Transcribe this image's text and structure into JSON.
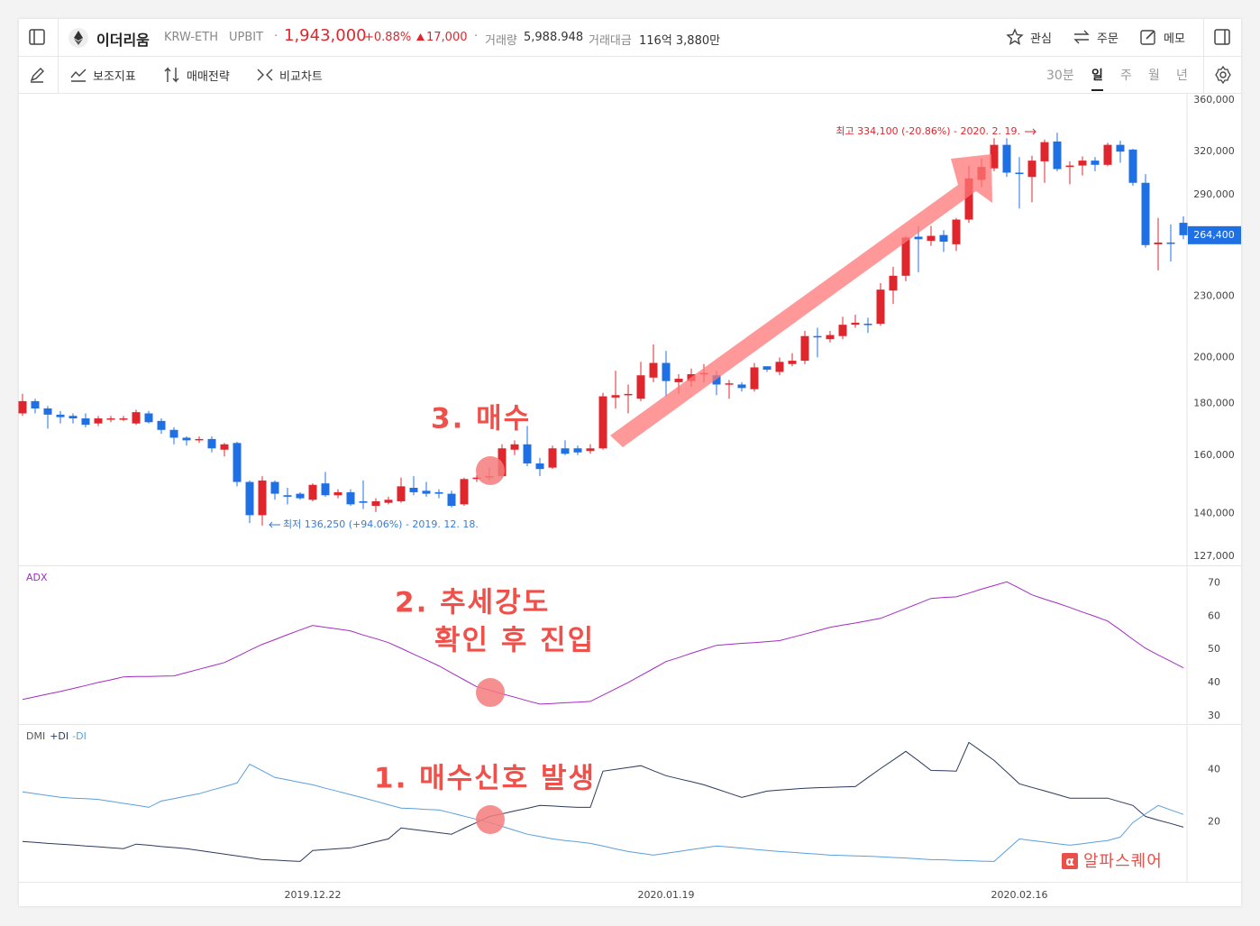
{
  "header": {
    "name": "이더리움",
    "market": "KRW-ETH",
    "exchange": "UPBIT",
    "price": "1,943,000",
    "change_pct": "+0.88%",
    "change": "17,000",
    "volume_label": "거래량",
    "volume": "5,988.948",
    "amount_label": "거래대금",
    "amount": "116억 3,880만",
    "actions": [
      "관심",
      "주문",
      "메모"
    ]
  },
  "toolbar": {
    "items": [
      "보조지표",
      "매매전략",
      "비교차트"
    ],
    "periods": [
      "30분",
      "일",
      "주",
      "월",
      "년"
    ],
    "active_period": 1
  },
  "annotations": [
    "3. 매수",
    "2. 추세강도",
    "확인 후 진입",
    "1.  매수신호 발생"
  ],
  "watermark": {
    "icon": "α",
    "text": "알파스퀘어"
  },
  "chart_data": [
    {
      "type": "candlestick",
      "log_scale": true,
      "up_color": "#e0262d",
      "down_color": "#1f6fe5",
      "categories": [
        null,
        null,
        null,
        null,
        null,
        null,
        null,
        null,
        null,
        null,
        null,
        null,
        null,
        null,
        null,
        null,
        null,
        null,
        null,
        null,
        null,
        null,
        null,
        "2019.12.22",
        null,
        null,
        null,
        null,
        null,
        null,
        null,
        null,
        null,
        null,
        null,
        null,
        null,
        null,
        null,
        null,
        null,
        null,
        null,
        null,
        null,
        null,
        null,
        null,
        null,
        null,
        null,
        "2020.01.19",
        null,
        null,
        null,
        null,
        null,
        null,
        null,
        null,
        null,
        null,
        null,
        null,
        null,
        null,
        null,
        null,
        null,
        null,
        null,
        null,
        null,
        null,
        null,
        null,
        null,
        null,
        null,
        "2020.02.16",
        null,
        null,
        null,
        null,
        null,
        null,
        null,
        null,
        null,
        null,
        null,
        null,
        null
      ],
      "open": [
        176000,
        181000,
        178000,
        175500,
        175000,
        174000,
        172000,
        173500,
        173500,
        172000,
        176000,
        173000,
        169500,
        166500,
        165500,
        166000,
        162000,
        164500,
        150500,
        139500,
        150500,
        146000,
        146500,
        144500,
        150000,
        146000,
        147000,
        144000,
        142500,
        143500,
        144000,
        148500,
        147500,
        147000,
        146500,
        143000,
        151500,
        152000,
        152500,
        162000,
        164000,
        157000,
        155500,
        162500,
        162500,
        161500,
        162500,
        182500,
        183500,
        182000,
        191000,
        197500,
        189000,
        189500,
        192500,
        192000,
        188000,
        188000,
        186000,
        196000,
        193500,
        197000,
        198500,
        210000,
        208500,
        210000,
        215500,
        216000,
        216000,
        233000,
        241000,
        263500,
        261000,
        264500,
        259000,
        274000,
        300000,
        308000,
        325000,
        305000,
        302000,
        313000,
        327500,
        309000,
        310000,
        313500,
        310500,
        325000,
        321500,
        298000,
        259000,
        260000,
        272000
      ],
      "high": [
        184000,
        182000,
        179000,
        177000,
        176000,
        176000,
        175000,
        175000,
        175000,
        177500,
        177000,
        174000,
        170500,
        167000,
        167000,
        167000,
        164500,
        165000,
        151000,
        152500,
        151000,
        148500,
        147000,
        150000,
        154000,
        148000,
        148000,
        151000,
        145000,
        145500,
        152000,
        152500,
        150500,
        148000,
        147500,
        152000,
        153000,
        155500,
        164000,
        165500,
        171000,
        159000,
        163500,
        165500,
        163500,
        164000,
        184500,
        194000,
        188000,
        198000,
        206000,
        203000,
        192500,
        195000,
        197000,
        194000,
        190000,
        189000,
        197500,
        196000,
        200000,
        202000,
        212500,
        214000,
        212500,
        219500,
        220500,
        219000,
        237000,
        246000,
        264000,
        270000,
        270000,
        267500,
        275000,
        310000,
        315000,
        330000,
        330000,
        316000,
        317000,
        329000,
        334100,
        313000,
        316500,
        316000,
        326500,
        328000,
        322000,
        304000,
        275000,
        271000,
        276000
      ],
      "low": [
        175000,
        176000,
        170000,
        172000,
        172000,
        170500,
        171000,
        172500,
        173000,
        171500,
        172000,
        168000,
        164000,
        163500,
        164500,
        161000,
        159500,
        149000,
        137000,
        136250,
        144500,
        143000,
        144500,
        144000,
        145500,
        145000,
        142500,
        141500,
        140500,
        143000,
        143500,
        146000,
        145500,
        145000,
        142000,
        142500,
        150500,
        151000,
        152000,
        160000,
        156000,
        152500,
        155000,
        160000,
        160000,
        160500,
        162000,
        178000,
        176000,
        181000,
        189000,
        183000,
        184000,
        187000,
        189000,
        183500,
        182000,
        185000,
        185000,
        193500,
        192000,
        196000,
        197000,
        200000,
        207000,
        208500,
        214000,
        211500,
        215000,
        226000,
        238000,
        243000,
        258000,
        254500,
        255000,
        272000,
        295000,
        306000,
        302000,
        281000,
        285000,
        298000,
        306000,
        297000,
        303000,
        306000,
        309500,
        312000,
        296000,
        257000,
        244000,
        249000,
        262000
      ],
      "close": [
        181000,
        178000,
        175500,
        174500,
        174000,
        171500,
        174000,
        174000,
        174000,
        176500,
        172500,
        169500,
        166500,
        165500,
        166000,
        162500,
        164000,
        150500,
        139500,
        151000,
        146500,
        145500,
        145000,
        149500,
        146000,
        147000,
        143000,
        143500,
        144000,
        144500,
        149000,
        147000,
        146500,
        146500,
        142500,
        151500,
        152000,
        152500,
        162500,
        164000,
        157000,
        155000,
        162500,
        160500,
        161000,
        162500,
        183000,
        183500,
        184000,
        192000,
        197500,
        189500,
        190500,
        192500,
        193000,
        188000,
        188500,
        186500,
        195500,
        194500,
        198000,
        198500,
        210000,
        209500,
        210500,
        215500,
        216500,
        215500,
        233500,
        241000,
        263000,
        262000,
        264000,
        260500,
        274000,
        301000,
        309000,
        325000,
        305000,
        304000,
        313500,
        327000,
        307500,
        310000,
        313500,
        310500,
        325000,
        320000,
        298000,
        258500,
        260000,
        259500,
        264400
      ],
      "ylim": [
        124400,
        365200
      ],
      "yticks": [
        {
          "value": 360000,
          "label": "360,000"
        },
        {
          "value": 320000,
          "label": "320,000"
        },
        {
          "value": 290000,
          "label": "290,000"
        },
        {
          "value": 230000,
          "label": "230,000"
        },
        {
          "value": 200000,
          "label": "200,000"
        },
        {
          "value": 180000,
          "label": "180,000"
        },
        {
          "value": 160000,
          "label": "160,000"
        },
        {
          "value": 140000,
          "label": "140,000"
        },
        {
          "value": 127000,
          "label": "127,000"
        }
      ],
      "current_price": {
        "value": 264400,
        "label": "264,400"
      },
      "high_label": "최고 334,100 (-20.86%) - 2020. 2. 19.",
      "low_label": "최저 136,250 (+94.06%) - 2019. 12. 18."
    },
    {
      "type": "line",
      "ylim": [
        27.5,
        75
      ],
      "yticks": [
        30,
        40,
        50,
        60,
        70
      ],
      "series": [
        {
          "name": "ADX",
          "color": "#a42bc4",
          "values": [
            34.9,
            35.7,
            36.5,
            37.3,
            38.2,
            39.1,
            40,
            40.8,
            41.7,
            41.8,
            41.8,
            41.9,
            42,
            43,
            44,
            45,
            46,
            47.8,
            49.7,
            51.5,
            52.9,
            54.4,
            55.8,
            57.2,
            56.6,
            56.1,
            55.5,
            54.3,
            53.2,
            52,
            50.3,
            48.5,
            46.8,
            45,
            42.9,
            40.8,
            38.7,
            37.7,
            36.6,
            35.6,
            34.5,
            33.5,
            33.7,
            33.9,
            34.1,
            34.3,
            36.2,
            38.1,
            40,
            42.1,
            44.2,
            46.3,
            47.5,
            48.8,
            50,
            51.2,
            51.5,
            51.8,
            52,
            52.3,
            52.6,
            53.6,
            54.6,
            55.6,
            56.6,
            57.3,
            57.9,
            58.6,
            59.3,
            60.8,
            62.3,
            63.8,
            65.3,
            65.6,
            65.8,
            66.9,
            68.1,
            69.2,
            70.3,
            68.4,
            66.4,
            65.1,
            63.9,
            62.6,
            61.2,
            59.9,
            58.5,
            55.8,
            53,
            50.3,
            48.3,
            46.4,
            44.4
          ]
        }
      ]
    },
    {
      "type": "line",
      "title": "DMI",
      "ylim": [
        -3,
        57
      ],
      "yticks": [
        20,
        40
      ],
      "series": [
        {
          "name": "+DI",
          "color": "#2b3a5c",
          "values": [
            12.4,
            12.1,
            11.7,
            11.4,
            11.1,
            10.7,
            10.4,
            10,
            9.7,
            11.4,
            11,
            10.5,
            10.1,
            9.7,
            9,
            8.3,
            7.6,
            6.9,
            6.2,
            5.5,
            5.3,
            5,
            4.8,
            9,
            9.3,
            9.7,
            10,
            11.1,
            12.3,
            13.4,
            17.6,
            17,
            16.4,
            15.8,
            15.2,
            17.5,
            19.7,
            22,
            23,
            24.1,
            25.1,
            26.2,
            26,
            25.7,
            25.5,
            25.5,
            39.3,
            40,
            40.7,
            41.4,
            39.5,
            37.6,
            36.4,
            35.3,
            34.1,
            32.5,
            30.9,
            29.3,
            30.5,
            31.7,
            32.1,
            32.4,
            32.8,
            33,
            33.1,
            33.3,
            33.4,
            36.9,
            40.3,
            43.6,
            46.9,
            43.3,
            39.6,
            39.5,
            39.3,
            50.3,
            46.9,
            43.4,
            39,
            34.5,
            33.1,
            31.8,
            30.4,
            29,
            29,
            29,
            29,
            27.6,
            26.2,
            22,
            20.6,
            19.3,
            17.9
          ]
        },
        {
          "name": "-DI",
          "color": "#5a9fdc",
          "values": [
            31.4,
            30.7,
            30,
            29.3,
            29,
            28.8,
            28.5,
            27.8,
            27,
            26.3,
            25.5,
            27.9,
            28.8,
            29.8,
            30.7,
            32.1,
            33.4,
            34.8,
            42,
            39.5,
            36.9,
            36,
            35,
            34.1,
            32.8,
            31.6,
            30.3,
            29.1,
            27.8,
            26.5,
            25.2,
            25,
            24.7,
            24.5,
            23.3,
            22.1,
            20.9,
            19.7,
            18.2,
            16.7,
            15.2,
            14.3,
            13.4,
            12.8,
            12.3,
            11.7,
            10.7,
            9.6,
            8.6,
            7.9,
            7.2,
            7.9,
            8.6,
            9.3,
            10,
            10.7,
            10.3,
            9.9,
            9.4,
            9,
            8.6,
            8.3,
            7.9,
            7.6,
            7.2,
            7.1,
            6.9,
            6.8,
            6.6,
            6.3,
            6.1,
            5.8,
            5.5,
            5.4,
            5.2,
            5.1,
            4.9,
            4.8,
            9.1,
            13.4,
            12.8,
            12.2,
            11.6,
            11,
            11.6,
            12.2,
            12.8,
            14.1,
            19.7,
            23,
            26.2,
            24.5,
            22.8
          ]
        }
      ]
    }
  ]
}
